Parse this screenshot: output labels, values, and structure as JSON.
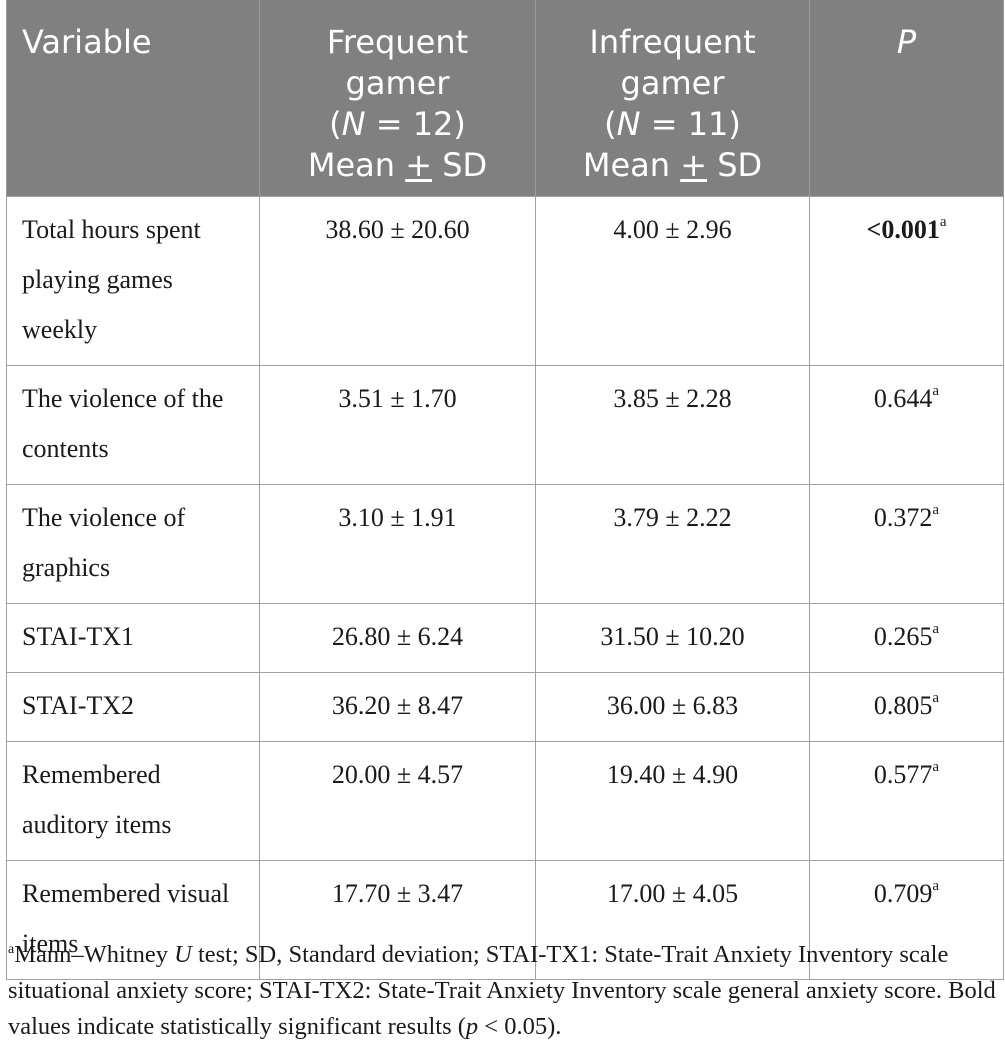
{
  "table": {
    "headers": {
      "variable": "Variable",
      "frequent": {
        "line1": "Frequent",
        "line2": "gamer",
        "n_label": "N",
        "n_value": " = 12)",
        "stat_prefix": "Mean ",
        "stat_pm": "+",
        "stat_suffix": " SD"
      },
      "infrequent": {
        "line1": "Infrequent",
        "line2": "gamer",
        "n_label": "N",
        "n_value": " = 11)",
        "stat_prefix": "Mean ",
        "stat_pm": "+",
        "stat_suffix": " SD"
      },
      "p": "P"
    },
    "rows": [
      {
        "variable": "Total hours spent playing games weekly",
        "frequent": "38.60 ± 20.60",
        "infrequent": "4.00 ± 2.96",
        "p": "<0.001",
        "p_note": "a",
        "bold": true
      },
      {
        "variable": "The violence of the contents",
        "frequent": "3.51 ± 1.70",
        "infrequent": "3.85 ± 2.28",
        "p": "0.644",
        "p_note": "a",
        "bold": false
      },
      {
        "variable": "The violence of graphics",
        "frequent": "3.10 ± 1.91",
        "infrequent": "3.79 ± 2.22",
        "p": "0.372",
        "p_note": "a",
        "bold": false
      },
      {
        "variable": "STAI-TX1",
        "frequent": "26.80 ± 6.24",
        "infrequent": "31.50 ± 10.20",
        "p": "0.265",
        "p_note": "a",
        "bold": false
      },
      {
        "variable": "STAI-TX2",
        "frequent": "36.20 ± 8.47",
        "infrequent": "36.00 ± 6.83",
        "p": "0.805",
        "p_note": "a",
        "bold": false
      },
      {
        "variable": "Remembered auditory items",
        "frequent": "20.00 ± 4.57",
        "infrequent": "19.40 ± 4.90",
        "p": "0.577",
        "p_note": "a",
        "bold": false
      },
      {
        "variable": "Remembered visual items",
        "frequent": "17.70 ± 3.47",
        "infrequent": "17.00 ± 4.05",
        "p": "0.709",
        "p_note": "a",
        "bold": false
      }
    ]
  },
  "footnote": {
    "marker": "a",
    "part1": "Mann–Whitney ",
    "u": "U",
    "part2": " test; SD, Standard deviation; STAI-TX1: State-Trait Anxiety Inventory scale situational anxiety score; STAI-TX2: State-Trait Anxiety Inventory scale general anxiety score. Bold values indicate statistically significant results (",
    "p": "p",
    "part3": " < 0.05)."
  }
}
